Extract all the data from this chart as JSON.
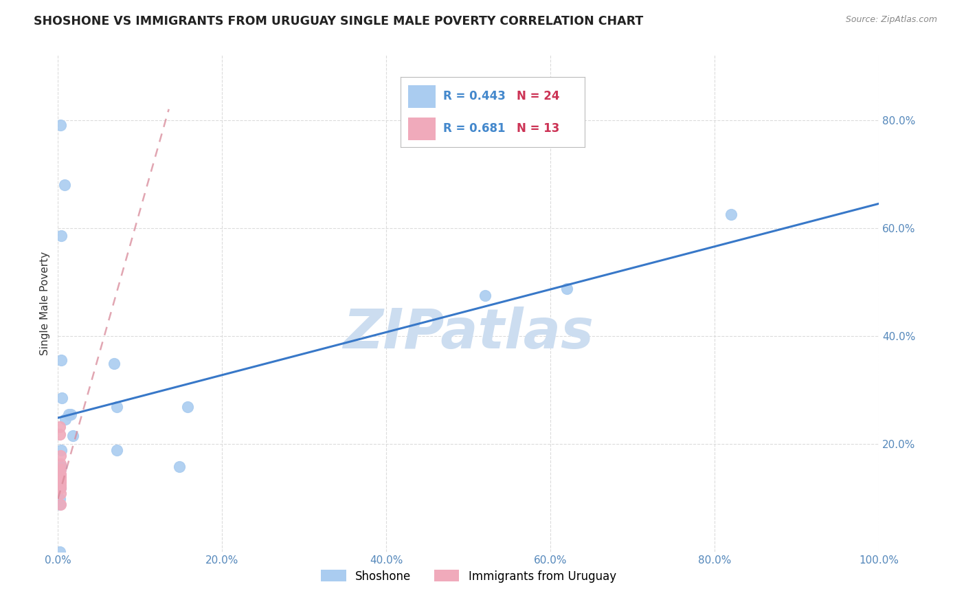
{
  "title": "SHOSHONE VS IMMIGRANTS FROM URUGUAY SINGLE MALE POVERTY CORRELATION CHART",
  "source": "Source: ZipAtlas.com",
  "ylabel": "Single Male Poverty",
  "xlim": [
    0,
    1.0
  ],
  "ylim": [
    0,
    0.92
  ],
  "xticks": [
    0.0,
    0.2,
    0.4,
    0.6,
    0.8,
    1.0
  ],
  "xtick_labels": [
    "0.0%",
    "20.0%",
    "40.0%",
    "60.0%",
    "80.0%",
    "100.0%"
  ],
  "yticks": [
    0.2,
    0.4,
    0.6,
    0.8
  ],
  "ytick_labels": [
    "20.0%",
    "40.0%",
    "60.0%",
    "80.0%"
  ],
  "shoshone_x": [
    0.003,
    0.008,
    0.004,
    0.004,
    0.005,
    0.013,
    0.016,
    0.009,
    0.018,
    0.004,
    0.004,
    0.003,
    0.003,
    0.068,
    0.072,
    0.072,
    0.148,
    0.158,
    0.52,
    0.62,
    0.82,
    0.002,
    0.002,
    0.002
  ],
  "shoshone_y": [
    0.79,
    0.68,
    0.585,
    0.355,
    0.285,
    0.255,
    0.255,
    0.245,
    0.215,
    0.188,
    0.158,
    0.152,
    0.118,
    0.348,
    0.268,
    0.188,
    0.158,
    0.268,
    0.475,
    0.488,
    0.625,
    0.0,
    0.088,
    0.098
  ],
  "uruguay_x": [
    0.002,
    0.002,
    0.003,
    0.003,
    0.003,
    0.003,
    0.003,
    0.003,
    0.003,
    0.003,
    0.003,
    0.003,
    0.003
  ],
  "uruguay_y": [
    0.232,
    0.218,
    0.178,
    0.163,
    0.153,
    0.143,
    0.138,
    0.133,
    0.128,
    0.123,
    0.118,
    0.108,
    0.088
  ],
  "R_shoshone": 0.443,
  "N_shoshone": 24,
  "R_uruguay": 0.681,
  "N_uruguay": 13,
  "blue_line_x0": 0.0,
  "blue_line_x1": 1.0,
  "blue_line_y0": 0.248,
  "blue_line_y1": 0.645,
  "pink_line_x0": 0.0,
  "pink_line_x1": 0.135,
  "pink_line_y0": 0.098,
  "pink_line_y1": 0.82,
  "dot_color_blue": "#aaccf0",
  "dot_color_pink": "#f0aabb",
  "line_color_blue": "#3878c8",
  "line_color_pink": "#d88898",
  "grid_color": "#d8d8d8",
  "watermark_color": "#ccddf0",
  "background_color": "#ffffff",
  "title_fontsize": 12.5,
  "axis_label_fontsize": 11,
  "tick_fontsize": 11,
  "legend_R_color": "#4488cc",
  "legend_N_color": "#cc3355"
}
